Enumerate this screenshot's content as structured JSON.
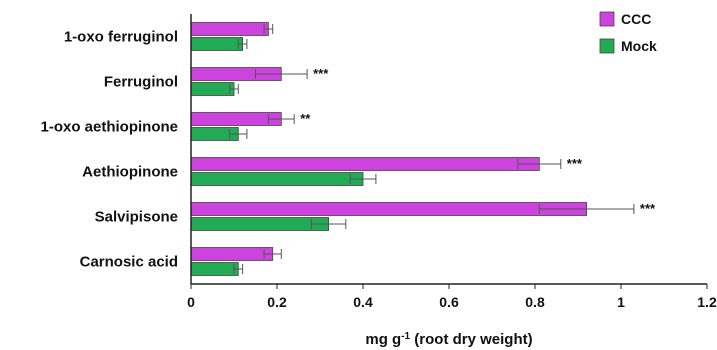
{
  "chart_data": {
    "type": "bar",
    "orientation": "horizontal",
    "title": "",
    "xlabel": "mg g-1 (root dry weight)",
    "ylabel": "",
    "xlim": [
      0,
      1.2
    ],
    "x_ticks": [
      "0",
      "0.2",
      "0.4",
      "0.6",
      "0.8",
      "1",
      "1.2"
    ],
    "grid": false,
    "legend_position": "top-right",
    "categories": [
      "1-oxo ferruginol",
      "Ferruginol",
      "1-oxo aethiopinone",
      "Aethiopinone",
      "Salvipisone",
      "Carnosic acid"
    ],
    "series": [
      {
        "name": "CCC",
        "color": "#cc44dd",
        "values": [
          0.18,
          0.21,
          0.21,
          0.81,
          0.92,
          0.19
        ],
        "errors": [
          0.01,
          0.06,
          0.03,
          0.05,
          0.11,
          0.02
        ]
      },
      {
        "name": "Mock",
        "color": "#22aa55",
        "values": [
          0.12,
          0.1,
          0.11,
          0.4,
          0.32,
          0.11
        ],
        "errors": [
          0.01,
          0.01,
          0.02,
          0.03,
          0.04,
          0.01
        ]
      }
    ],
    "significance": [
      "",
      "***",
      "**",
      "***",
      "***",
      ""
    ]
  }
}
